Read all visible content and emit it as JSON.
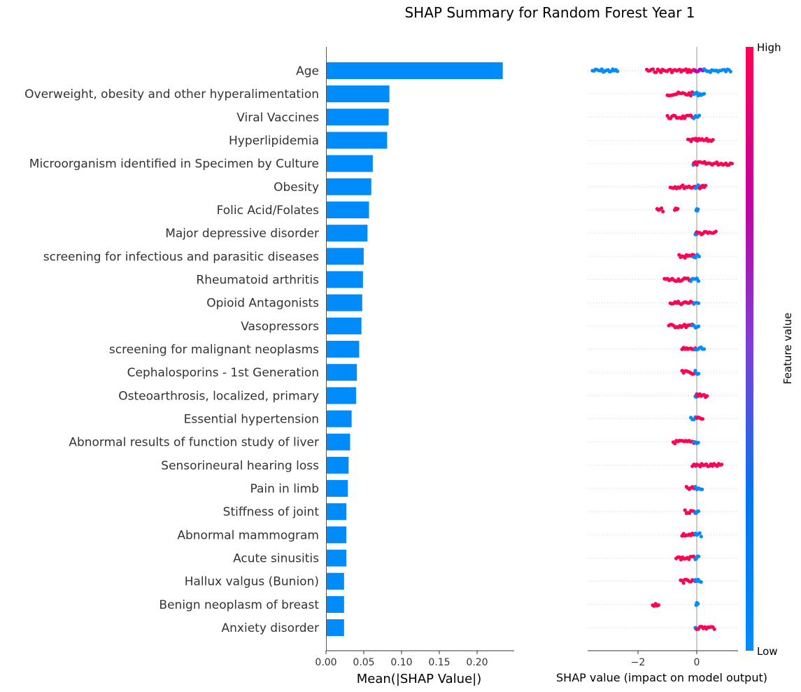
{
  "title": "SHAP Summary for Random Forest Year 1",
  "chart_data": [
    {
      "type": "bar",
      "orientation": "horizontal",
      "categories": [
        "Age",
        "Overweight, obesity and other hyperalimentation",
        "Viral Vaccines",
        "Hyperlipidemia",
        "Microorganism identified in Specimen by Culture",
        "Obesity",
        "Folic Acid/Folates",
        "Major depressive disorder",
        "screening for infectious and parasitic diseases",
        "Rheumatoid arthritis",
        "Opioid Antagonists",
        "Vasopressors",
        "screening for malignant neoplasms",
        "Cephalosporins - 1st Generation",
        "Osteoarthrosis, localized, primary",
        "Essential hypertension",
        "Abnormal results of function study of liver",
        "Sensorineural hearing loss",
        "Pain in limb",
        "Stiffness of joint",
        "Abnormal mammogram",
        "Acute sinusitis",
        "Hallux valgus (Bunion)",
        "Benign neoplasm of breast",
        "Anxiety disorder"
      ],
      "values": [
        0.233,
        0.083,
        0.082,
        0.08,
        0.061,
        0.059,
        0.056,
        0.054,
        0.049,
        0.048,
        0.047,
        0.046,
        0.043,
        0.04,
        0.039,
        0.033,
        0.031,
        0.029,
        0.028,
        0.026,
        0.026,
        0.026,
        0.023,
        0.023,
        0.023
      ],
      "xlabel": "Mean(|SHAP Value|)",
      "xlim": [
        0,
        0.245
      ],
      "xticks": [
        "0.00",
        "0.05",
        "0.10",
        "0.15",
        "0.20"
      ],
      "color": "#008bfb"
    },
    {
      "type": "scatter",
      "subtype": "shap_beeswarm",
      "xlabel": "SHAP value (impact on model output)",
      "xlim": [
        -3.7,
        1.35
      ],
      "xticks": [
        "−2",
        "0"
      ],
      "colorbar": {
        "label": "Feature value",
        "high": "High",
        "low": "Low",
        "low_color": "#008bfb",
        "mid_color": "#b800b8",
        "high_color": "#ff0052"
      },
      "rows": [
        {
          "segments": [
            [
              -3.55,
              -2.7,
              "low"
            ],
            [
              -1.7,
              -0.05,
              "high"
            ],
            [
              -0.05,
              0.25,
              "mid"
            ],
            [
              0.25,
              1.15,
              "low"
            ]
          ]
        },
        {
          "segments": [
            [
              -1.0,
              -0.1,
              "high"
            ],
            [
              -0.1,
              0.25,
              "low"
            ]
          ]
        },
        {
          "segments": [
            [
              -1.0,
              -0.1,
              "high"
            ],
            [
              -0.1,
              0.08,
              "low"
            ]
          ]
        },
        {
          "segments": [
            [
              -0.05,
              0.0,
              "low"
            ],
            [
              -0.3,
              0.55,
              "high"
            ]
          ]
        },
        {
          "segments": [
            [
              -0.12,
              0.0,
              "low"
            ],
            [
              -0.1,
              1.2,
              "high"
            ]
          ]
        },
        {
          "segments": [
            [
              -0.9,
              -0.05,
              "high"
            ],
            [
              -0.05,
              0.15,
              "low"
            ],
            [
              0.1,
              0.3,
              "high"
            ]
          ]
        },
        {
          "segments": [
            [
              -1.35,
              -1.15,
              "high"
            ],
            [
              -0.75,
              -0.65,
              "high"
            ],
            [
              -0.02,
              0.04,
              "low"
            ]
          ]
        },
        {
          "segments": [
            [
              -0.05,
              0.0,
              "low"
            ],
            [
              0.0,
              0.65,
              "high"
            ]
          ]
        },
        {
          "segments": [
            [
              -0.6,
              -0.1,
              "high"
            ],
            [
              -0.1,
              0.08,
              "low"
            ]
          ]
        },
        {
          "segments": [
            [
              -1.1,
              -0.2,
              "high"
            ],
            [
              -0.2,
              0.06,
              "low"
            ]
          ]
        },
        {
          "segments": [
            [
              -0.9,
              -0.1,
              "high"
            ],
            [
              -0.1,
              0.06,
              "low"
            ]
          ]
        },
        {
          "segments": [
            [
              -0.95,
              -0.15,
              "high"
            ],
            [
              -0.15,
              0.06,
              "low"
            ]
          ]
        },
        {
          "segments": [
            [
              -0.5,
              -0.05,
              "high"
            ],
            [
              -0.05,
              0.25,
              "low"
            ]
          ]
        },
        {
          "segments": [
            [
              -0.5,
              -0.05,
              "high"
            ],
            [
              -0.05,
              0.06,
              "low"
            ]
          ]
        },
        {
          "segments": [
            [
              -0.05,
              0.0,
              "low"
            ],
            [
              0.0,
              0.35,
              "high"
            ]
          ]
        },
        {
          "segments": [
            [
              -0.2,
              0.05,
              "low"
            ],
            [
              0.0,
              0.2,
              "high"
            ]
          ]
        },
        {
          "segments": [
            [
              -0.8,
              -0.1,
              "high"
            ],
            [
              -0.1,
              0.05,
              "low"
            ]
          ]
        },
        {
          "segments": [
            [
              -0.05,
              0.0,
              "low"
            ],
            [
              -0.15,
              0.85,
              "high"
            ]
          ]
        },
        {
          "segments": [
            [
              -0.35,
              0.0,
              "high"
            ],
            [
              -0.05,
              0.18,
              "low"
            ]
          ]
        },
        {
          "segments": [
            [
              -0.4,
              -0.05,
              "high"
            ],
            [
              -0.05,
              0.06,
              "low"
            ]
          ]
        },
        {
          "segments": [
            [
              -0.5,
              -0.05,
              "high"
            ],
            [
              -0.05,
              0.15,
              "low"
            ]
          ]
        },
        {
          "segments": [
            [
              -0.7,
              -0.05,
              "high"
            ],
            [
              -0.05,
              0.06,
              "low"
            ]
          ]
        },
        {
          "segments": [
            [
              -0.55,
              -0.05,
              "high"
            ],
            [
              -0.05,
              0.15,
              "low"
            ]
          ]
        },
        {
          "segments": [
            [
              -1.5,
              -1.3,
              "high"
            ],
            [
              -0.02,
              0.04,
              "low"
            ]
          ]
        },
        {
          "segments": [
            [
              -0.05,
              0.0,
              "low"
            ],
            [
              0.0,
              0.6,
              "high"
            ]
          ]
        }
      ]
    }
  ]
}
